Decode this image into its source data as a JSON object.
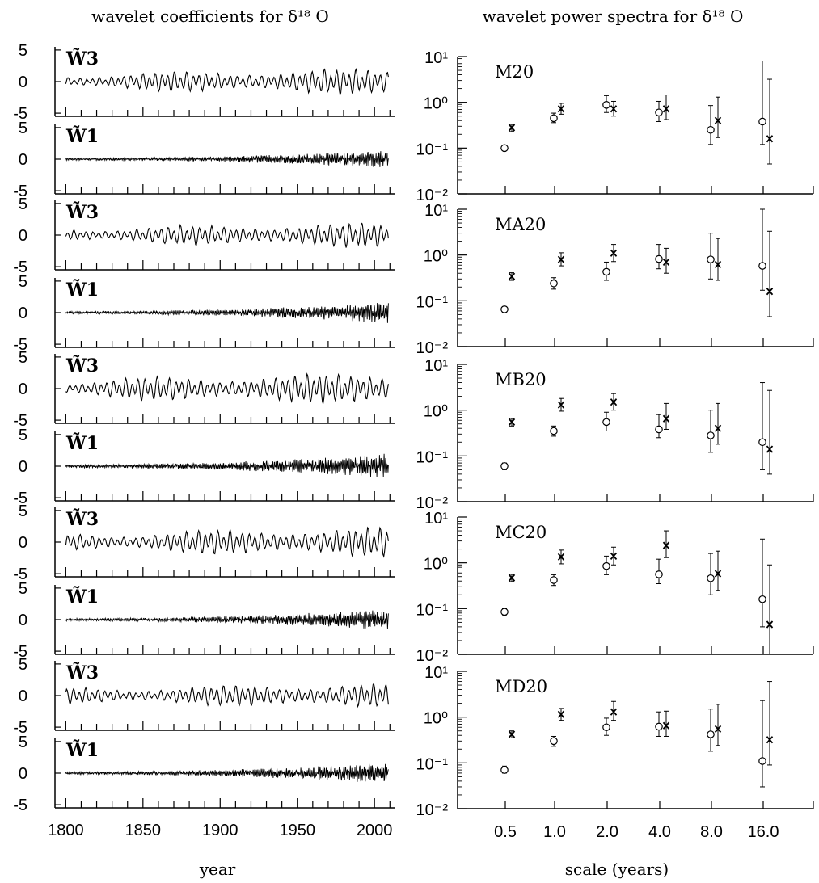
{
  "figure": {
    "left_title": "wavelet coefficients for δ¹⁸ O",
    "right_title": "wavelet power spectra for δ¹⁸ O",
    "left_xlabel": "year",
    "right_xlabel": "scale (years)"
  },
  "chart_data": [
    {
      "type": "line",
      "panel": "wavelet coefficients",
      "x_tick_labels": [
        "1800",
        "1850",
        "1900",
        "1950",
        "2000"
      ],
      "xlim": [
        1793,
        2013
      ],
      "ylim": [
        -5.5,
        5.5
      ],
      "y_tick_labels": [
        "5",
        "0",
        "-5"
      ],
      "series_labels": [
        "W̃3",
        "W̃1"
      ],
      "rows": [
        {
          "W3_amplitude": 1.6,
          "W1_amplitude": 0.5,
          "seed": 11
        },
        {
          "W3_amplitude": 1.5,
          "W1_amplitude": 0.6,
          "seed": 23
        },
        {
          "W3_amplitude": 1.9,
          "W1_amplitude": 0.7,
          "seed": 37
        },
        {
          "W3_amplitude": 1.8,
          "W1_amplitude": 0.6,
          "seed": 41
        },
        {
          "W3_amplitude": 1.5,
          "W1_amplitude": 0.6,
          "seed": 53
        }
      ]
    },
    {
      "type": "scatter",
      "panel": "wavelet power spectra",
      "y_scale": "log",
      "ylim": [
        0.01,
        10
      ],
      "y_tick_labels": [
        "10¹",
        "10⁰",
        "10⁻¹",
        "10⁻²"
      ],
      "x_categories": [
        "0.5",
        "1.0",
        "2.0",
        "4.0",
        "8.0",
        "16.0"
      ],
      "markers": {
        "circle": "o",
        "cross": "x"
      },
      "series": [
        {
          "name": "M20",
          "circle": [
            [
              0.1,
              0.09,
              0.11
            ],
            [
              0.45,
              0.36,
              0.58
            ],
            [
              0.88,
              0.6,
              1.4
            ],
            [
              0.6,
              0.38,
              1.05
            ],
            [
              0.25,
              0.12,
              0.85
            ],
            [
              0.38,
              0.12,
              8.0
            ]
          ],
          "cross": [
            [
              0.28,
              0.23,
              0.33
            ],
            [
              0.72,
              0.55,
              0.95
            ],
            [
              0.72,
              0.5,
              1.05
            ],
            [
              0.72,
              0.42,
              1.45
            ],
            [
              0.4,
              0.17,
              1.3
            ],
            [
              0.16,
              0.045,
              3.2
            ]
          ]
        },
        {
          "name": "MA20",
          "circle": [
            [
              0.065,
              0.055,
              0.075
            ],
            [
              0.24,
              0.18,
              0.32
            ],
            [
              0.43,
              0.28,
              0.7
            ],
            [
              0.82,
              0.5,
              1.7
            ],
            [
              0.8,
              0.3,
              3.0
            ],
            [
              0.58,
              0.17,
              10.0
            ]
          ],
          "cross": [
            [
              0.34,
              0.28,
              0.41
            ],
            [
              0.8,
              0.58,
              1.12
            ],
            [
              1.1,
              0.72,
              1.7
            ],
            [
              0.7,
              0.4,
              1.4
            ],
            [
              0.62,
              0.28,
              2.3
            ],
            [
              0.16,
              0.045,
              3.3
            ]
          ]
        },
        {
          "name": "MB20",
          "circle": [
            [
              0.06,
              0.05,
              0.07
            ],
            [
              0.35,
              0.27,
              0.45
            ],
            [
              0.55,
              0.35,
              0.9
            ],
            [
              0.38,
              0.25,
              0.8
            ],
            [
              0.28,
              0.12,
              1.0
            ],
            [
              0.2,
              0.05,
              4.0
            ]
          ],
          "cross": [
            [
              0.55,
              0.45,
              0.66
            ],
            [
              1.3,
              0.95,
              1.8
            ],
            [
              1.5,
              1.0,
              2.3
            ],
            [
              0.65,
              0.38,
              1.4
            ],
            [
              0.4,
              0.18,
              1.4
            ],
            [
              0.14,
              0.04,
              2.7
            ]
          ]
        },
        {
          "name": "MC20",
          "circle": [
            [
              0.085,
              0.07,
              0.1
            ],
            [
              0.42,
              0.32,
              0.55
            ],
            [
              0.85,
              0.55,
              1.4
            ],
            [
              0.56,
              0.35,
              1.2
            ],
            [
              0.46,
              0.2,
              1.6
            ],
            [
              0.16,
              0.04,
              3.3
            ]
          ],
          "cross": [
            [
              0.47,
              0.39,
              0.56
            ],
            [
              1.35,
              0.95,
              1.9
            ],
            [
              1.4,
              0.9,
              2.2
            ],
            [
              2.4,
              1.3,
              5.0
            ],
            [
              0.58,
              0.25,
              1.8
            ],
            [
              0.045,
              0.01,
              0.9
            ]
          ]
        },
        {
          "name": "MD20",
          "circle": [
            [
              0.07,
              0.06,
              0.085
            ],
            [
              0.3,
              0.23,
              0.38
            ],
            [
              0.6,
              0.4,
              0.95
            ],
            [
              0.62,
              0.38,
              1.3
            ],
            [
              0.42,
              0.18,
              1.5
            ],
            [
              0.11,
              0.03,
              2.3
            ]
          ],
          "cross": [
            [
              0.42,
              0.35,
              0.5
            ],
            [
              1.15,
              0.85,
              1.55
            ],
            [
              1.3,
              0.85,
              2.2
            ],
            [
              0.65,
              0.38,
              1.35
            ],
            [
              0.55,
              0.24,
              1.9
            ],
            [
              0.32,
              0.09,
              6.0
            ]
          ]
        }
      ]
    }
  ]
}
